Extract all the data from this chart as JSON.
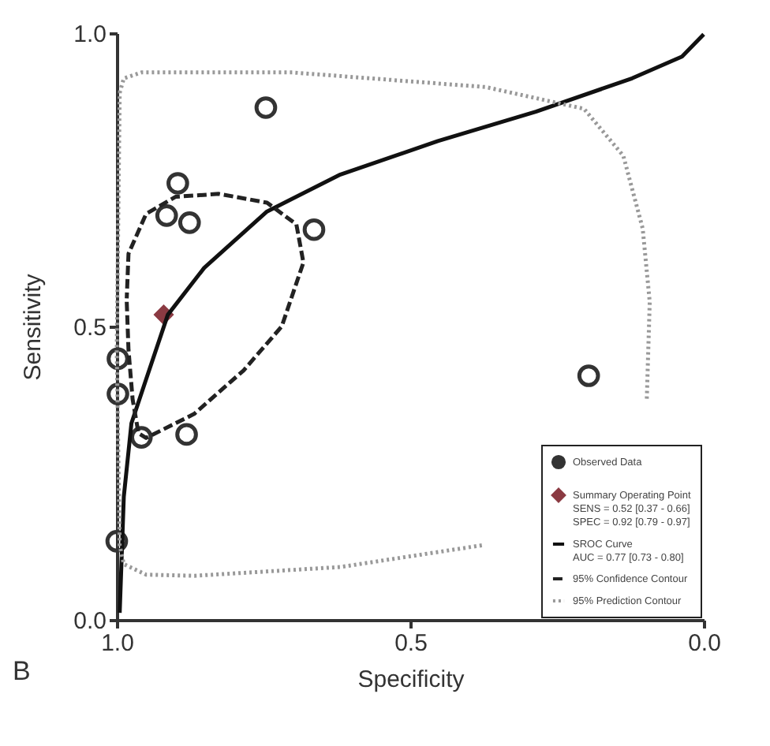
{
  "chart_data": {
    "type": "scatter",
    "xlabel": "Specificity",
    "ylabel": "Sensitivity",
    "annotations": [
      "B"
    ],
    "xlim": [
      1,
      0
    ],
    "ylim": [
      0,
      1
    ],
    "xticks": [
      {
        "value": 1,
        "label": "1.0"
      },
      {
        "value": 0.5,
        "label": "0.5"
      },
      {
        "value": 0,
        "label": "0.0"
      }
    ],
    "yticks": [
      {
        "value": 0,
        "label": "0.0"
      },
      {
        "value": 0.5,
        "label": "0.5"
      },
      {
        "value": 1,
        "label": "1.0"
      }
    ],
    "grid": false,
    "legend": "bottom right",
    "series": [
      {
        "name": "Observed Data",
        "marker": "circle",
        "color": "#333333",
        "x": [
          0.746,
          0.896,
          0.915,
          0.876,
          0.664,
          0.998,
          0.998,
          0.958,
          0.881,
          0.196,
          1.0
        ],
        "values": [
          0.873,
          0.744,
          0.689,
          0.677,
          0.665,
          0.445,
          0.385,
          0.311,
          0.316,
          0.416,
          0.134
        ]
      },
      {
        "name": "Summary Operating Point\nSENS = 0.52 [0.37 - 0.66]\nSPEC = 0.92 [0.79 - 0.97]",
        "marker": "diamond",
        "color": "#8b3a42",
        "x": [
          0.92
        ],
        "values": [
          0.52
        ]
      },
      {
        "name": "SROC Curve\nAUC = 0.77 [0.73 - 0.80]",
        "type": "line",
        "line_style": "solid",
        "color": "#111111",
        "x": [
          0.995,
          0.988,
          0.975,
          0.95,
          0.913,
          0.851,
          0.744,
          0.619,
          0.453,
          0.286,
          0.122,
          0.037,
          0.0
        ],
        "values": [
          0.012,
          0.21,
          0.335,
          0.41,
          0.52,
          0.6,
          0.696,
          0.759,
          0.816,
          0.866,
          0.923,
          0.96,
          0.998
        ]
      },
      {
        "name": "95% Confidence Contour",
        "type": "line",
        "line_style": "dashed",
        "color": "#222222",
        "x": [
          0.983,
          0.98,
          0.973,
          0.963,
          0.95,
          0.868,
          0.784,
          0.719,
          0.682,
          0.694,
          0.744,
          0.826,
          0.9,
          0.95,
          0.98,
          0.983
        ],
        "values": [
          0.542,
          0.46,
          0.376,
          0.318,
          0.31,
          0.351,
          0.425,
          0.5,
          0.609,
          0.674,
          0.711,
          0.726,
          0.721,
          0.692,
          0.624,
          0.548
        ]
      },
      {
        "name": "95% Prediction Contour",
        "type": "line",
        "line_style": "dotted",
        "color": "#999999",
        "x": [
          0.995,
          0.988,
          0.958,
          0.701,
          0.371,
          0.204,
          0.137,
          0.104,
          0.092,
          0.097,
          null,
          0.378,
          0.619,
          0.868,
          0.95,
          0.988,
          0.995,
          1.0,
          0.995
        ],
        "values": [
          0.898,
          0.923,
          0.933,
          0.933,
          0.908,
          0.871,
          0.791,
          0.667,
          0.542,
          0.376,
          null,
          0.127,
          0.09,
          0.075,
          0.077,
          0.095,
          0.127,
          0.46,
          0.898
        ]
      }
    ]
  }
}
